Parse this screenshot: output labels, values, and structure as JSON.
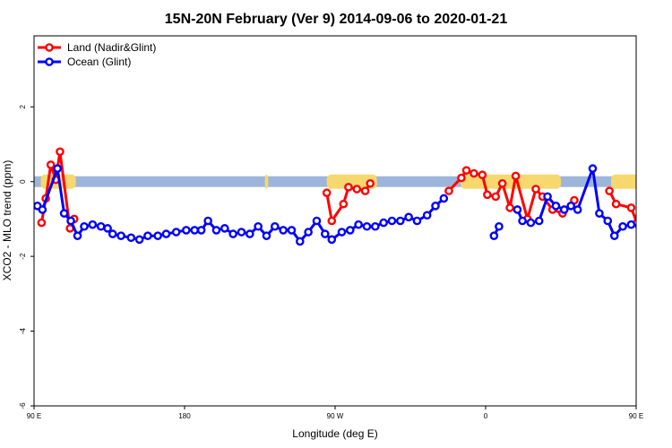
{
  "chart_data": {
    "type": "line",
    "title": "15N-20N February (Ver 9)   2014-09-06 to 2020-01-21",
    "xlabel": "Longitude (deg E)",
    "ylabel": "XCO2 - MLO trend (ppm)",
    "xlim": [
      90,
      450
    ],
    "ylim": [
      -6,
      3.9
    ],
    "x_ticks": [
      {
        "value": 90,
        "label": "90 E"
      },
      {
        "value": 180,
        "label": "180"
      },
      {
        "value": 270,
        "label": "90 W"
      },
      {
        "value": 360,
        "label": "0"
      },
      {
        "value": 450,
        "label": "90 E"
      },
      {
        "value": 540,
        "label": "180"
      }
    ],
    "y_ticks": [
      {
        "value": -6,
        "label": "-6"
      },
      {
        "value": -4,
        "label": "-4"
      },
      {
        "value": -2,
        "label": "-2"
      },
      {
        "value": 0,
        "label": "0"
      },
      {
        "value": 2,
        "label": "2"
      }
    ],
    "legend_position": "top-left",
    "land_colors": {
      "ocean": "#9db5db",
      "land": "#f7d86e"
    },
    "land_segments": [
      [
        94,
        115
      ],
      [
        228,
        230
      ],
      [
        265,
        295
      ],
      [
        345,
        405
      ],
      [
        435,
        460
      ]
    ],
    "series": [
      {
        "name": "Land (Nadir&Glint)",
        "color": "#ff0000",
        "segments": [
          [
            [
              94.5,
              -1.1
            ],
            [
              97,
              -0.45
            ],
            [
              100,
              0.45
            ],
            [
              103,
              0.05
            ],
            [
              105.5,
              0.8
            ],
            [
              111.5,
              -1.25
            ],
            [
              114,
              -1.0
            ]
          ],
          [
            [
              265,
              -0.3
            ],
            [
              268,
              -1.05
            ],
            [
              275,
              -0.6
            ],
            [
              278,
              -0.15
            ],
            [
              283,
              -0.2
            ],
            [
              288,
              -0.25
            ],
            [
              291,
              -0.05
            ]
          ],
          [
            [
              338,
              -0.25
            ],
            [
              345.5,
              0.1
            ],
            [
              348.5,
              0.3
            ],
            [
              353,
              0.22
            ],
            [
              358,
              0.18
            ],
            [
              361,
              -0.35
            ],
            [
              366,
              -0.4
            ],
            [
              370,
              -0.05
            ],
            [
              374.5,
              -0.7
            ],
            [
              378,
              0.15
            ],
            [
              385,
              -1.0
            ],
            [
              390,
              -0.2
            ],
            [
              394,
              -0.4
            ],
            [
              400,
              -0.75
            ],
            [
              406,
              -0.85
            ],
            [
              413,
              -0.5
            ]
          ],
          [
            [
              434,
              -0.25
            ],
            [
              438,
              -0.6
            ],
            [
              447,
              -0.7
            ],
            [
              450.5,
              -1.1
            ],
            [
              453,
              -0.45
            ],
            [
              456,
              0.45
            ],
            [
              459,
              0.05
            ],
            [
              462,
              0.8
            ],
            [
              467.5,
              -1.25
            ],
            [
              471,
              -1.0
            ]
          ]
        ]
      },
      {
        "name": "Ocean (Glint)",
        "color": "#0000ff",
        "segments": [
          [
            [
              92,
              -0.65
            ],
            [
              95,
              -0.75
            ],
            [
              104,
              0.35
            ],
            [
              108,
              -0.85
            ],
            [
              112,
              -1.05
            ],
            [
              116,
              -1.45
            ],
            [
              120,
              -1.2
            ],
            [
              125,
              -1.15
            ],
            [
              130,
              -1.2
            ],
            [
              134,
              -1.25
            ],
            [
              137,
              -1.4
            ],
            [
              142,
              -1.45
            ],
            [
              148,
              -1.5
            ],
            [
              153,
              -1.55
            ],
            [
              158,
              -1.45
            ],
            [
              164,
              -1.45
            ],
            [
              169,
              -1.4
            ],
            [
              175,
              -1.35
            ],
            [
              181,
              -1.3
            ],
            [
              186,
              -1.3
            ],
            [
              190,
              -1.3
            ],
            [
              194,
              -1.05
            ],
            [
              199,
              -1.3
            ],
            [
              204,
              -1.25
            ],
            [
              209,
              -1.4
            ],
            [
              214,
              -1.35
            ],
            [
              219,
              -1.4
            ],
            [
              224,
              -1.2
            ],
            [
              229,
              -1.45
            ],
            [
              234,
              -1.2
            ],
            [
              239,
              -1.3
            ],
            [
              244,
              -1.3
            ],
            [
              249,
              -1.6
            ],
            [
              254,
              -1.35
            ],
            [
              259,
              -1.05
            ],
            [
              264,
              -1.4
            ],
            [
              268,
              -1.55
            ],
            [
              274,
              -1.35
            ],
            [
              279,
              -1.3
            ],
            [
              284,
              -1.15
            ],
            [
              289,
              -1.2
            ],
            [
              294,
              -1.2
            ],
            [
              299,
              -1.1
            ],
            [
              304,
              -1.05
            ],
            [
              309,
              -1.05
            ],
            [
              314,
              -0.95
            ],
            [
              319,
              -1.05
            ],
            [
              325,
              -0.9
            ],
            [
              330,
              -0.65
            ],
            [
              335,
              -0.45
            ]
          ],
          [
            [
              365,
              -1.45
            ],
            [
              368,
              -1.2
            ]
          ],
          [
            [
              379,
              -0.75
            ],
            [
              382,
              -1.05
            ],
            [
              387,
              -1.1
            ],
            [
              392,
              -1.05
            ],
            [
              397,
              -0.4
            ],
            [
              402,
              -0.65
            ],
            [
              407,
              -0.75
            ],
            [
              411,
              -0.65
            ],
            [
              415,
              -0.75
            ],
            [
              424,
              0.35
            ],
            [
              428,
              -0.85
            ],
            [
              433,
              -1.05
            ],
            [
              437,
              -1.45
            ],
            [
              442,
              -1.2
            ],
            [
              447,
              -1.15
            ],
            [
              452,
              -1.2
            ],
            [
              456,
              -1.25
            ],
            [
              460,
              -1.4
            ],
            [
              464,
              -1.45
            ],
            [
              469,
              -1.5
            ],
            [
              474,
              -1.55
            ],
            [
              479,
              -1.45
            ],
            [
              484,
              -1.45
            ],
            [
              490,
              -1.4
            ]
          ]
        ]
      }
    ]
  }
}
